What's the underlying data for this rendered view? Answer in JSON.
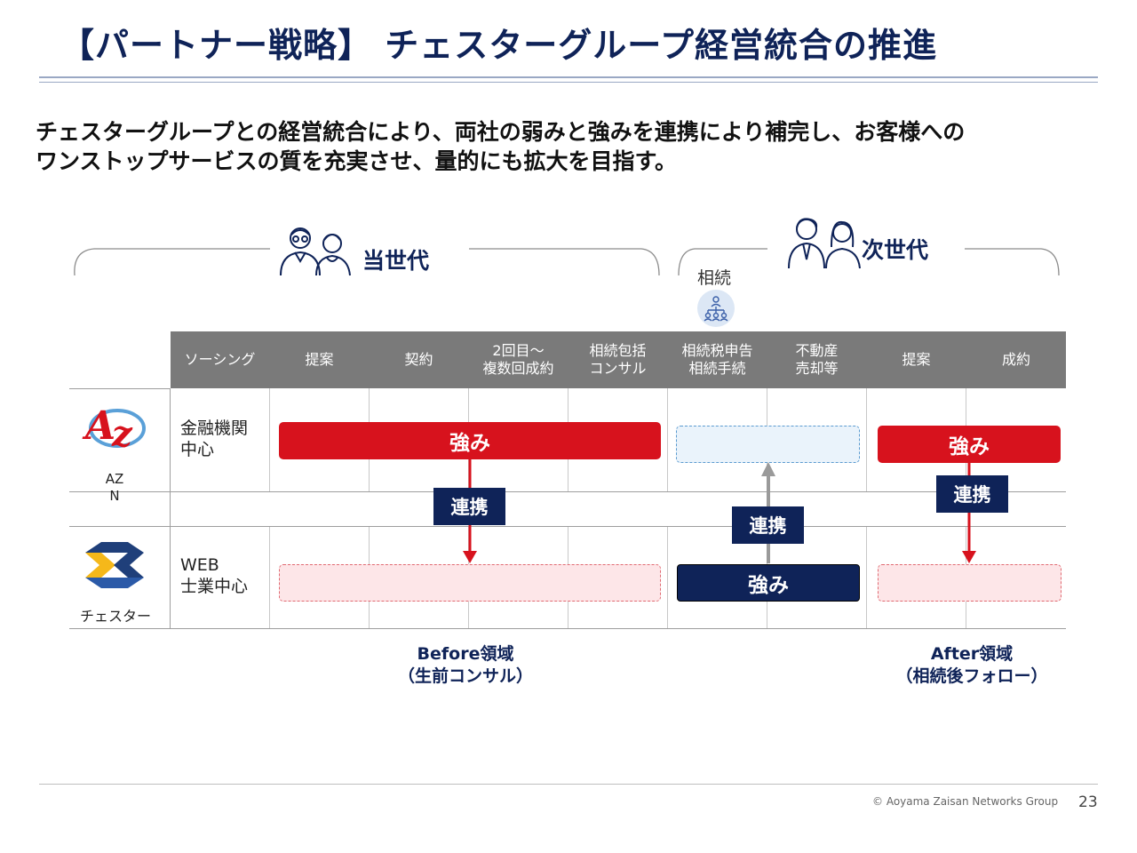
{
  "title": "【パートナー戦略】 チェスターグループ経営統合の推進",
  "lead": {
    "line1": "チェスターグループとの経営統合により、両社の弱みと強みを連携により補完し、お客様への",
    "line2": "ワンストップサービスの質を充実させ、量的にも拡大を目指す。"
  },
  "generations": {
    "current": "当世代",
    "next": "次世代",
    "inheritance": "相続"
  },
  "columns": [
    {
      "label1": "ソーシング",
      "label2": ""
    },
    {
      "label1": "提案",
      "label2": ""
    },
    {
      "label1": "契約",
      "label2": ""
    },
    {
      "label1": "2回目～",
      "label2": "複数回成約"
    },
    {
      "label1": "相続包括",
      "label2": "コンサル"
    },
    {
      "label1": "相続税申告",
      "label2": "相続手続"
    },
    {
      "label1": "不動産",
      "label2": "売却等"
    },
    {
      "label1": "提案",
      "label2": ""
    },
    {
      "label1": "成約",
      "label2": ""
    }
  ],
  "rows": {
    "azn": {
      "logo_caption": "AZ\nN",
      "label1": "金融機関",
      "label2": "中心"
    },
    "chester": {
      "logo_caption": "チェスター",
      "label1": "WEB",
      "label2": "士業中心"
    }
  },
  "bars": {
    "strength": "強み",
    "link": "連携"
  },
  "areas": {
    "before": {
      "line1": "Before領域",
      "line2": "（生前コンサル）"
    },
    "after": {
      "line1": "After領域",
      "line2": "（相続後フォロー）"
    }
  },
  "footer": {
    "copyright": "© Aoyama Zaisan Networks Group",
    "page": "23"
  },
  "colors": {
    "navy": "#0f2358",
    "red": "#d7121d",
    "header_gray": "#7a7a7a"
  }
}
